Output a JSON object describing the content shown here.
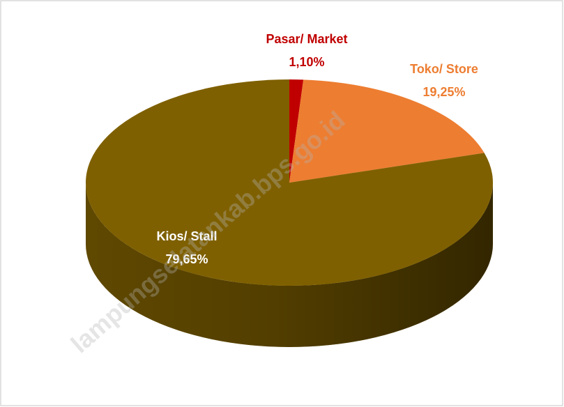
{
  "chart_data": {
    "type": "pie",
    "categories": [
      "Pasar/ Market",
      "Toko/ Store",
      "Kios/ Stall"
    ],
    "values": [
      1.1,
      19.25,
      79.65
    ],
    "value_labels": [
      "1,10%",
      "19,25%",
      "79,65%"
    ],
    "colors": [
      "#c00000",
      "#ed7d31",
      "#7f6000"
    ],
    "watermark": "lampungselatankab.bps.go.id"
  }
}
